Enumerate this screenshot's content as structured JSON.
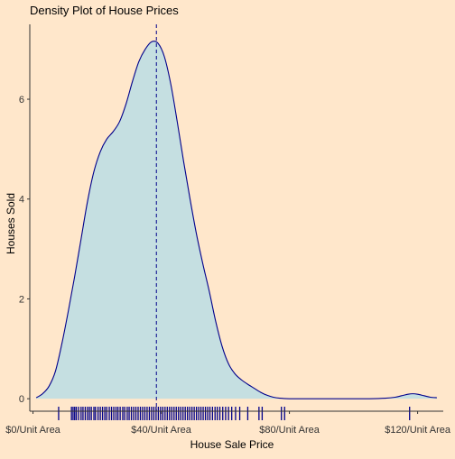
{
  "chart_data": {
    "type": "area",
    "title": "Density Plot of House Prices",
    "xlabel": "House Sale Price",
    "ylabel": "Houses Sold",
    "xlim": [
      -1,
      128
    ],
    "ylim": [
      -0.25,
      7.5
    ],
    "x_ticks": [
      {
        "value": 0,
        "label": "$0/Unit Area"
      },
      {
        "value": 40,
        "label": "$40/Unit Area"
      },
      {
        "value": 80,
        "label": "$80/Unit Area"
      },
      {
        "value": 120,
        "label": "$120/Unit Area"
      }
    ],
    "y_ticks": [
      {
        "value": 0,
        "label": "0"
      },
      {
        "value": 2,
        "label": "2"
      },
      {
        "value": 4,
        "label": "4"
      },
      {
        "value": 6,
        "label": "6"
      }
    ],
    "grid": false,
    "density": {
      "x": [
        1,
        3,
        5,
        7,
        9,
        11,
        13,
        15,
        17,
        19,
        21,
        23,
        25,
        27,
        29,
        31,
        33,
        35,
        37,
        39,
        41,
        43,
        45,
        47,
        49,
        51,
        53,
        55,
        57,
        59,
        61,
        63,
        65,
        67,
        69,
        71,
        73,
        75,
        77,
        80,
        83,
        86,
        90,
        95,
        100,
        105,
        110,
        113,
        115,
        117,
        118.5,
        120,
        122,
        124,
        126
      ],
      "y": [
        0.02,
        0.1,
        0.25,
        0.55,
        1.1,
        1.75,
        2.45,
        3.2,
        3.95,
        4.55,
        4.95,
        5.2,
        5.35,
        5.55,
        5.9,
        6.35,
        6.75,
        7.0,
        7.15,
        7.12,
        6.85,
        6.3,
        5.55,
        4.75,
        4.0,
        3.3,
        2.7,
        2.15,
        1.55,
        1.05,
        0.7,
        0.5,
        0.38,
        0.29,
        0.21,
        0.13,
        0.07,
        0.03,
        0.01,
        0.0,
        0.0,
        0.0,
        0.0,
        0.0,
        0.0,
        0.0,
        0.01,
        0.03,
        0.06,
        0.09,
        0.1,
        0.09,
        0.06,
        0.03,
        0.02
      ],
      "fill": "#c5dfe1",
      "line_color": "#00008b"
    },
    "median_line": {
      "x": 38.5,
      "color": "#00008b",
      "style": "dashed"
    },
    "rug": {
      "color": "#00008b",
      "values": [
        8,
        12,
        12.5,
        13,
        13.5,
        14.2,
        15,
        15.6,
        16.3,
        17,
        17.6,
        18.2,
        19,
        19.5,
        20.3,
        21,
        21.7,
        22.4,
        23,
        23.8,
        24.5,
        25.2,
        25.9,
        26.5,
        27.2,
        28,
        28.6,
        29.4,
        30,
        30.7,
        31.4,
        32.1,
        32.8,
        33.5,
        34.2,
        34.9,
        35.6,
        36.3,
        37,
        37.7,
        38.4,
        39.1,
        39.8,
        40.5,
        41.2,
        41.9,
        42.6,
        43.3,
        44,
        44.7,
        45.4,
        46.1,
        46.8,
        47.5,
        48.2,
        48.9,
        49.6,
        50.3,
        51,
        51.7,
        52.4,
        53.1,
        53.8,
        54.5,
        55.2,
        56,
        56.8,
        57.5,
        58.3,
        59.2,
        60.1,
        61,
        62,
        63.2,
        64.5,
        67,
        70.5,
        71.5,
        77.5,
        78.5,
        117.5
      ]
    },
    "colors": {
      "background": "#ffe7cb",
      "axis": "#333333",
      "text": "#000000"
    }
  }
}
